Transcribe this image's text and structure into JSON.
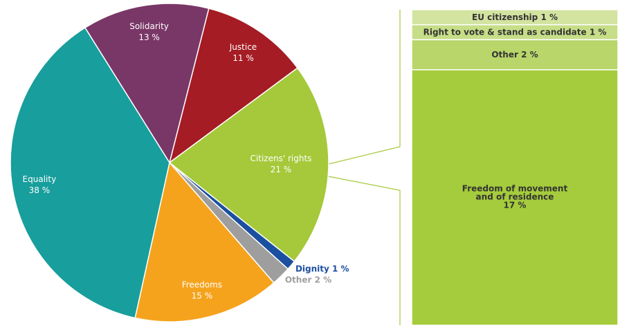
{
  "chart_data": {
    "type": "pie-of-bar",
    "pie": {
      "categories": [
        "Justice",
        "Citizens' rights",
        "Dignity",
        "Other",
        "Freedoms",
        "Equality",
        "Solidarity"
      ],
      "values": [
        11,
        21,
        1,
        2,
        15,
        38,
        13
      ],
      "value_labels": [
        "11 %",
        "21 %",
        "1 %",
        "2 %",
        "15 %",
        "38 %",
        "13 %"
      ],
      "colors": [
        "#a51c24",
        "#a5c93a",
        "#1b4fa0",
        "#9e9e9e",
        "#f5a31d",
        "#189e9c",
        "#793767"
      ]
    },
    "bar": {
      "categories": [
        "EU citizenship",
        "Right to vote & stand as candidate",
        "Other",
        "Freedom of movement and of residence"
      ],
      "values": [
        1,
        1,
        2,
        17
      ],
      "value_labels": [
        "1 %",
        "1 %",
        "2 %",
        "17 %"
      ],
      "colors": [
        "#d3e3a0",
        "#c7de88",
        "#b8d66a",
        "#a5cc3c"
      ]
    }
  }
}
